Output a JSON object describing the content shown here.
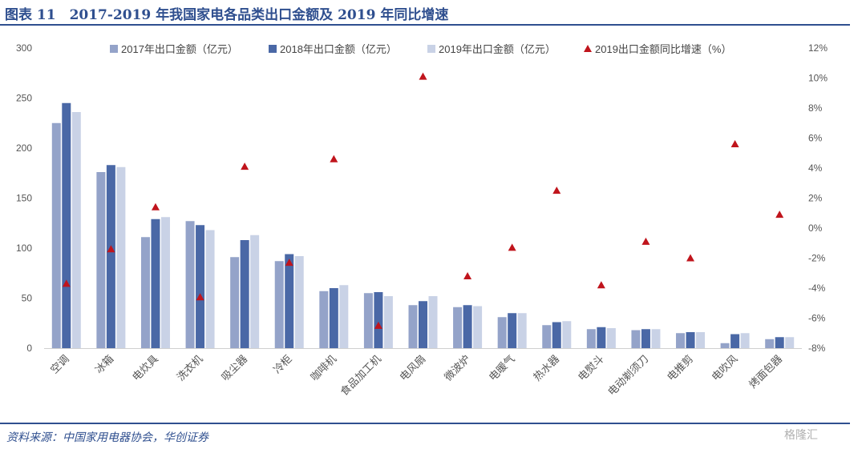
{
  "header": {
    "title": "图表 11　2017-2019 年我国家电各品类出口金额及 2019 年同比增速"
  },
  "footer": {
    "source": "资料来源：中国家用电器协会，华创证券",
    "watermark": "格隆汇"
  },
  "colors": {
    "s2017": "#94a3c9",
    "s2018": "#4a68a6",
    "s2019": "#c9d2e6",
    "growth": "#c0141c",
    "frame": "#2f4f8f"
  },
  "chart_data": {
    "type": "bar",
    "categories": [
      "空调",
      "冰箱",
      "电炊具",
      "洗衣机",
      "吸尘器",
      "冷柜",
      "咖啡机",
      "食品加工机",
      "电风扇",
      "微波炉",
      "电暖气",
      "热水器",
      "电熨斗",
      "电动剃须刀",
      "电推剪",
      "电吹风",
      "烤面包器"
    ],
    "series": [
      {
        "name": "2017年出口金额（亿元）",
        "values": [
          225,
          176,
          111,
          127,
          91,
          87,
          57,
          55,
          43,
          41,
          31,
          23,
          19,
          18,
          15,
          5,
          9
        ]
      },
      {
        "name": "2018年出口金额（亿元）",
        "values": [
          245,
          183,
          129,
          123,
          108,
          94,
          60,
          56,
          47,
          43,
          35,
          26,
          21,
          19,
          16,
          14,
          11
        ]
      },
      {
        "name": "2019年出口金额（亿元）",
        "values": [
          236,
          181,
          131,
          118,
          113,
          92,
          63,
          52,
          52,
          42,
          35,
          27,
          20,
          19,
          16,
          15,
          11
        ]
      }
    ],
    "growth_series": {
      "name": "2019出口金额同比增速（%）",
      "values": [
        -3.7,
        -1.4,
        1.4,
        -4.6,
        4.1,
        -2.3,
        4.6,
        -6.5,
        10.1,
        -3.2,
        -1.3,
        2.5,
        -3.8,
        -0.9,
        -2.0,
        5.6,
        0.9
      ]
    },
    "y_left": {
      "ticks": [
        "300",
        "250",
        "200",
        "150",
        "100",
        "50",
        "0"
      ],
      "min": 0,
      "max": 300
    },
    "y_right": {
      "ticks": [
        "12%",
        "10%",
        "8%",
        "6%",
        "4%",
        "2%",
        "0%",
        "-2%",
        "-4%",
        "-6%",
        "-8%"
      ],
      "min": -8,
      "max": 12
    },
    "legend": "top"
  }
}
